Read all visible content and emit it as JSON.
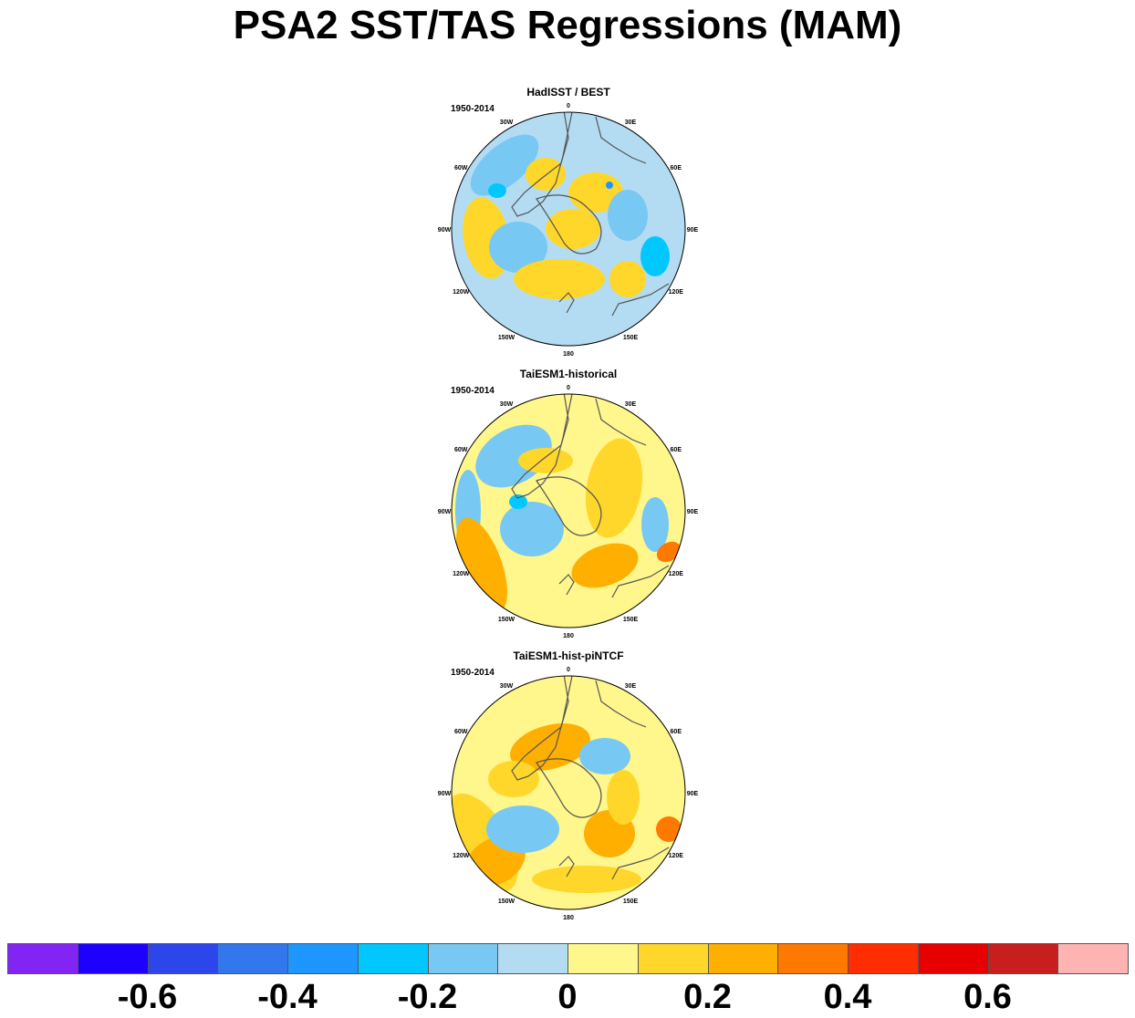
{
  "title": "PSA2 SST/TAS Regressions (MAM)",
  "panels": [
    {
      "title": "HadISST / BEST",
      "period": "1950-2014",
      "base": "#b3dcf2",
      "variant": 0
    },
    {
      "title": "TaiESM1-historical",
      "period": "1950-2014",
      "base": "#fff68c",
      "variant": 1
    },
    {
      "title": "TaiESM1-hist-piNTCF",
      "period": "1950-2014",
      "base": "#fff68c",
      "variant": 2
    }
  ],
  "lon_labels": [
    "0",
    "30E",
    "60E",
    "90E",
    "120E",
    "150E",
    "180",
    "150W",
    "120W",
    "90W",
    "60W",
    "30W"
  ],
  "colorbar": {
    "colors": [
      "#8224f4",
      "#1e00ff",
      "#2d46eb",
      "#3277eb",
      "#1e96ff",
      "#00c8ff",
      "#78c8f4",
      "#b3dcf2",
      "#fff68c",
      "#ffd72a",
      "#ffaf00",
      "#ff7800",
      "#ff2d00",
      "#e60000",
      "#c81e1e",
      "#ffb4b4"
    ],
    "labels": [
      "-0.6",
      "-0.4",
      "-0.2",
      "0",
      "0.2",
      "0.4",
      "0.6"
    ]
  }
}
